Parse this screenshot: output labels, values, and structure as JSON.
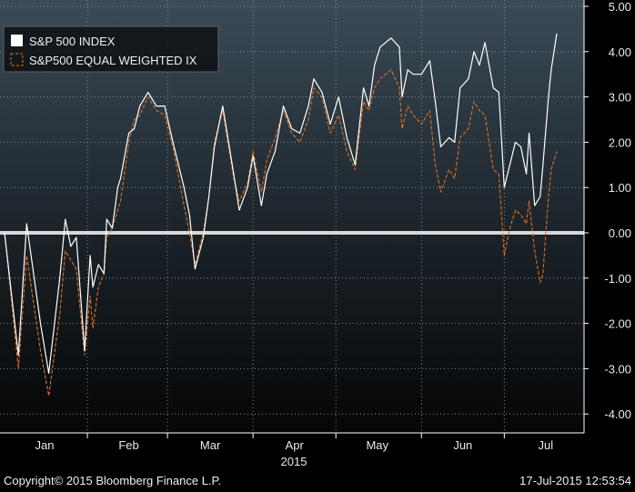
{
  "chart_data": {
    "type": "line",
    "title": "",
    "xlabel": "2015",
    "ylabel": "",
    "ylim": [
      -4.5,
      5.0
    ],
    "y_ticks": [
      5.0,
      4.0,
      3.0,
      2.0,
      1.0,
      0.0,
      -1.0,
      -2.0,
      -3.0,
      -4.0
    ],
    "y_tick_labels": [
      "5.00",
      "4.00",
      "3.00",
      "2.00",
      "1.00",
      "0.00",
      "-1.00",
      "-2.00",
      "-3.00",
      "-4.00"
    ],
    "x_ticks": [
      {
        "label": "Jan",
        "x": 14.5
      },
      {
        "label": "Feb",
        "x": 45
      },
      {
        "label": "Mar",
        "x": 74.5
      },
      {
        "label": "Apr",
        "x": 105
      },
      {
        "label": "May",
        "x": 135
      },
      {
        "label": "Jun",
        "x": 166
      },
      {
        "label": "Jul",
        "x": 196
      }
    ],
    "xlim": [
      0,
      201
    ],
    "year_label": "2015",
    "zero_line": 0.0,
    "grid": true,
    "legend_position": "top-left",
    "series": [
      {
        "name": "S&P 500 INDEX",
        "color": "#ffffff",
        "dash": "solid",
        "points": [
          [
            0,
            0.0
          ],
          [
            5,
            -2.7
          ],
          [
            8,
            0.2
          ],
          [
            13,
            -2.0
          ],
          [
            16,
            -3.1
          ],
          [
            20,
            -1.0
          ],
          [
            22,
            0.3
          ],
          [
            24,
            -0.3
          ],
          [
            26,
            -0.1
          ],
          [
            29,
            -2.6
          ],
          [
            31,
            -0.5
          ],
          [
            32,
            -1.2
          ],
          [
            34,
            -0.7
          ],
          [
            36,
            -0.9
          ],
          [
            37,
            0.3
          ],
          [
            39,
            0.1
          ],
          [
            41,
            1.0
          ],
          [
            42,
            1.2
          ],
          [
            45,
            2.2
          ],
          [
            47,
            2.3
          ],
          [
            49,
            2.8
          ],
          [
            52,
            3.1
          ],
          [
            55,
            2.8
          ],
          [
            58,
            2.8
          ],
          [
            61,
            2.0
          ],
          [
            65,
            1.0
          ],
          [
            67,
            0.4
          ],
          [
            69,
            -0.8
          ],
          [
            72,
            -0.1
          ],
          [
            74,
            0.8
          ],
          [
            76,
            1.9
          ],
          [
            79,
            2.8
          ],
          [
            83,
            1.3
          ],
          [
            85,
            0.5
          ],
          [
            88,
            1.0
          ],
          [
            90,
            1.7
          ],
          [
            93,
            0.6
          ],
          [
            95,
            1.3
          ],
          [
            98,
            1.8
          ],
          [
            101,
            2.8
          ],
          [
            104,
            2.3
          ],
          [
            107,
            2.2
          ],
          [
            110,
            2.8
          ],
          [
            112,
            3.4
          ],
          [
            115,
            3.1
          ],
          [
            118,
            2.4
          ],
          [
            121,
            3.0
          ],
          [
            124,
            2.1
          ],
          [
            127,
            1.5
          ],
          [
            130,
            3.2
          ],
          [
            132,
            2.8
          ],
          [
            134,
            3.7
          ],
          [
            136,
            4.1
          ],
          [
            138,
            4.2
          ],
          [
            140,
            4.3
          ],
          [
            143,
            4.1
          ],
          [
            144,
            3.0
          ],
          [
            146,
            3.6
          ],
          [
            148,
            3.5
          ],
          [
            151,
            3.5
          ],
          [
            154,
            3.8
          ],
          [
            156,
            2.9
          ],
          [
            158,
            1.9
          ],
          [
            161,
            2.1
          ],
          [
            163,
            2.0
          ],
          [
            165,
            3.2
          ],
          [
            168,
            3.4
          ],
          [
            170,
            4.0
          ],
          [
            172,
            3.7
          ],
          [
            174,
            4.2
          ],
          [
            177,
            3.2
          ],
          [
            179,
            3.1
          ],
          [
            181,
            1.0
          ],
          [
            183,
            1.5
          ],
          [
            185,
            2.0
          ],
          [
            187,
            1.9
          ],
          [
            189,
            1.3
          ],
          [
            190,
            2.2
          ],
          [
            192,
            0.6
          ],
          [
            194,
            0.8
          ],
          [
            195,
            1.5
          ],
          [
            197,
            3.0
          ],
          [
            198,
            3.6
          ],
          [
            200,
            4.4
          ]
        ]
      },
      {
        "name": "S&P500 EQUAL WEIGHTED IX",
        "color": "#e07020",
        "dash": "dashed",
        "points": [
          [
            0,
            0.0
          ],
          [
            5,
            -3.0
          ],
          [
            8,
            -0.5
          ],
          [
            13,
            -2.6
          ],
          [
            16,
            -3.6
          ],
          [
            20,
            -1.8
          ],
          [
            22,
            -0.4
          ],
          [
            24,
            -0.6
          ],
          [
            26,
            -0.8
          ],
          [
            29,
            -2.7
          ],
          [
            31,
            -1.4
          ],
          [
            32,
            -2.1
          ],
          [
            34,
            -1.2
          ],
          [
            36,
            -0.9
          ],
          [
            37,
            -0.1
          ],
          [
            39,
            0.1
          ],
          [
            41,
            0.5
          ],
          [
            42,
            0.7
          ],
          [
            45,
            2.0
          ],
          [
            47,
            2.5
          ],
          [
            49,
            2.6
          ],
          [
            52,
            3.0
          ],
          [
            55,
            2.7
          ],
          [
            58,
            2.6
          ],
          [
            61,
            1.9
          ],
          [
            65,
            0.6
          ],
          [
            67,
            0.0
          ],
          [
            69,
            -0.7
          ],
          [
            72,
            0.0
          ],
          [
            74,
            0.8
          ],
          [
            76,
            2.0
          ],
          [
            79,
            2.7
          ],
          [
            83,
            1.2
          ],
          [
            85,
            0.7
          ],
          [
            88,
            1.1
          ],
          [
            90,
            1.8
          ],
          [
            93,
            0.9
          ],
          [
            95,
            1.6
          ],
          [
            98,
            2.1
          ],
          [
            101,
            2.7
          ],
          [
            104,
            2.2
          ],
          [
            107,
            2.0
          ],
          [
            110,
            2.5
          ],
          [
            112,
            3.2
          ],
          [
            115,
            3.0
          ],
          [
            118,
            2.2
          ],
          [
            121,
            2.6
          ],
          [
            124,
            1.8
          ],
          [
            127,
            1.4
          ],
          [
            130,
            2.9
          ],
          [
            132,
            2.7
          ],
          [
            134,
            3.2
          ],
          [
            136,
            3.4
          ],
          [
            138,
            3.5
          ],
          [
            140,
            3.6
          ],
          [
            143,
            3.2
          ],
          [
            144,
            2.3
          ],
          [
            146,
            2.8
          ],
          [
            148,
            2.6
          ],
          [
            151,
            2.4
          ],
          [
            154,
            2.7
          ],
          [
            156,
            1.5
          ],
          [
            158,
            0.9
          ],
          [
            161,
            1.4
          ],
          [
            163,
            1.2
          ],
          [
            165,
            2.1
          ],
          [
            168,
            2.3
          ],
          [
            170,
            2.9
          ],
          [
            172,
            2.7
          ],
          [
            174,
            2.6
          ],
          [
            177,
            1.4
          ],
          [
            179,
            1.3
          ],
          [
            181,
            -0.5
          ],
          [
            183,
            0.1
          ],
          [
            185,
            0.5
          ],
          [
            187,
            0.4
          ],
          [
            189,
            0.2
          ],
          [
            190,
            0.7
          ],
          [
            192,
            -0.4
          ],
          [
            194,
            -1.1
          ],
          [
            195,
            -0.9
          ],
          [
            197,
            0.8
          ],
          [
            198,
            1.4
          ],
          [
            200,
            1.8
          ]
        ]
      }
    ]
  },
  "footer": {
    "copyright": "Copyright© 2015 Bloomberg Finance L.P.",
    "timestamp": "17-Jul-2015 12:53:54"
  }
}
